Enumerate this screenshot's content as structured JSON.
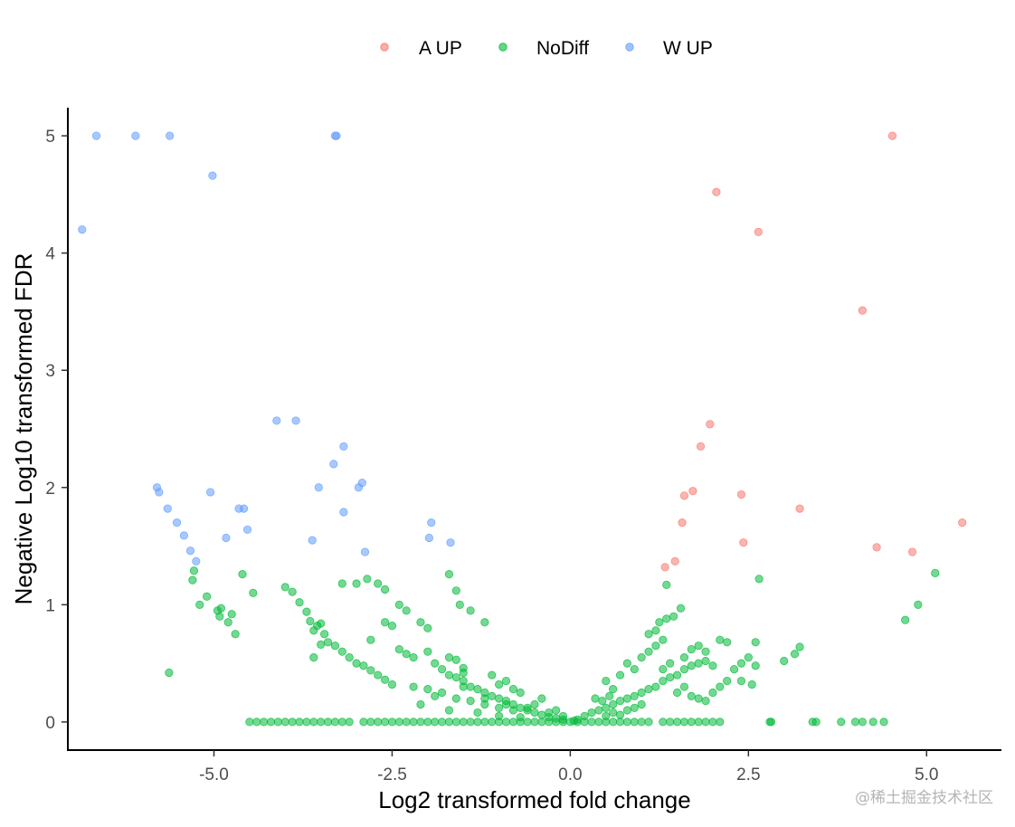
{
  "chart_data": {
    "type": "scatter",
    "title": "",
    "xlabel": "Log2 transformed fold change",
    "ylabel": "Negative Log10 transformed FDR",
    "xlim": [
      -7.05,
      6.05
    ],
    "ylim": [
      -0.24,
      5.24
    ],
    "xticks": [
      -5.0,
      -2.5,
      0.0,
      2.5,
      5.0
    ],
    "xtick_labels": [
      "-5.0",
      "-2.5",
      "0.0",
      "2.5",
      "5.0"
    ],
    "yticks": [
      0,
      1,
      2,
      3,
      4,
      5
    ],
    "ytick_labels": [
      "0",
      "1",
      "2",
      "3",
      "4",
      "5"
    ],
    "grid": false,
    "legend_position": "top-center",
    "series": [
      {
        "name": "A UP",
        "color": "#f8766d",
        "points": [
          [
            4.52,
            5.0
          ],
          [
            2.05,
            4.52
          ],
          [
            2.64,
            4.18
          ],
          [
            4.1,
            3.51
          ],
          [
            1.96,
            2.54
          ],
          [
            1.83,
            2.35
          ],
          [
            1.72,
            1.97
          ],
          [
            1.6,
            1.93
          ],
          [
            2.4,
            1.94
          ],
          [
            3.22,
            1.82
          ],
          [
            1.57,
            1.7
          ],
          [
            5.5,
            1.7
          ],
          [
            2.43,
            1.53
          ],
          [
            4.3,
            1.49
          ],
          [
            4.8,
            1.45
          ],
          [
            1.47,
            1.37
          ],
          [
            1.33,
            1.32
          ]
        ]
      },
      {
        "name": "NoDiff",
        "color": "#00ba38",
        "points": [
          [
            -5.63,
            0.42
          ],
          [
            -5.2,
            1.0
          ],
          [
            -5.1,
            1.07
          ],
          [
            -4.95,
            0.95
          ],
          [
            -4.92,
            0.9
          ],
          [
            -4.8,
            0.85
          ],
          [
            -4.75,
            0.92
          ],
          [
            -4.7,
            0.75
          ],
          [
            -4.6,
            1.26
          ],
          [
            -4.45,
            1.1
          ],
          [
            -5.3,
            1.21
          ],
          [
            -5.28,
            1.29
          ],
          [
            -4.9,
            0.97
          ],
          [
            -4.0,
            1.15
          ],
          [
            -3.9,
            1.11
          ],
          [
            -3.8,
            1.02
          ],
          [
            -3.7,
            0.94
          ],
          [
            -3.65,
            0.86
          ],
          [
            -3.6,
            0.78
          ],
          [
            -3.55,
            0.82
          ],
          [
            -3.5,
            0.84
          ],
          [
            -3.45,
            0.75
          ],
          [
            -3.4,
            0.68
          ],
          [
            -3.3,
            0.65
          ],
          [
            -3.2,
            0.6
          ],
          [
            -3.1,
            0.55
          ],
          [
            -3.0,
            0.5
          ],
          [
            -2.9,
            0.48
          ],
          [
            -2.8,
            0.44
          ],
          [
            -2.7,
            0.4
          ],
          [
            -2.6,
            0.36
          ],
          [
            -2.5,
            0.32
          ],
          [
            -3.6,
            0.55
          ],
          [
            -3.5,
            0.66
          ],
          [
            -3.2,
            1.18
          ],
          [
            -3.0,
            1.18
          ],
          [
            -2.85,
            1.22
          ],
          [
            -2.7,
            1.18
          ],
          [
            -2.6,
            1.13
          ],
          [
            -2.8,
            0.7
          ],
          [
            -2.6,
            0.85
          ],
          [
            -2.5,
            0.82
          ],
          [
            -2.4,
            0.62
          ],
          [
            -2.3,
            0.58
          ],
          [
            -2.2,
            0.55
          ],
          [
            -2.4,
            1.0
          ],
          [
            -2.3,
            0.95
          ],
          [
            -2.1,
            0.85
          ],
          [
            -2.0,
            0.8
          ],
          [
            -2.0,
            0.6
          ],
          [
            -1.9,
            0.5
          ],
          [
            -1.8,
            0.45
          ],
          [
            -1.7,
            0.4
          ],
          [
            -1.6,
            0.38
          ],
          [
            -1.5,
            0.35
          ],
          [
            -1.7,
            1.26
          ],
          [
            -1.6,
            1.12
          ],
          [
            -1.55,
            1.0
          ],
          [
            -1.4,
            0.95
          ],
          [
            -1.7,
            0.55
          ],
          [
            -1.6,
            0.53
          ],
          [
            -1.5,
            0.46
          ],
          [
            -1.5,
            0.42
          ],
          [
            -1.2,
            0.85
          ],
          [
            -1.4,
            0.3
          ],
          [
            -1.3,
            0.28
          ],
          [
            -1.2,
            0.25
          ],
          [
            -1.1,
            0.22
          ],
          [
            -1.0,
            0.2
          ],
          [
            -0.9,
            0.18
          ],
          [
            -0.8,
            0.15
          ],
          [
            -0.7,
            0.12
          ],
          [
            -0.6,
            0.1
          ],
          [
            -0.5,
            0.08
          ],
          [
            -0.4,
            0.06
          ],
          [
            -0.3,
            0.04
          ],
          [
            -0.2,
            0.03
          ],
          [
            -0.1,
            0.02
          ],
          [
            0.05,
            0.01
          ],
          [
            -2.2,
            0.3
          ],
          [
            -2.0,
            0.28
          ],
          [
            -1.9,
            0.22
          ],
          [
            -1.8,
            0.25
          ],
          [
            -1.6,
            0.2
          ],
          [
            -1.4,
            0.18
          ],
          [
            -1.2,
            0.15
          ],
          [
            -1.0,
            0.12
          ],
          [
            -0.8,
            0.1
          ],
          [
            -0.6,
            0.12
          ],
          [
            -0.5,
            0.15
          ],
          [
            -0.9,
            0.35
          ],
          [
            -1.1,
            0.4
          ],
          [
            -1.0,
            0.32
          ],
          [
            -0.8,
            0.28
          ],
          [
            -0.7,
            0.25
          ],
          [
            -2.1,
            0.15
          ],
          [
            -1.7,
            0.1
          ],
          [
            -1.3,
            0.08
          ],
          [
            -1.0,
            0.05
          ],
          [
            -0.7,
            0.04
          ],
          [
            -0.3,
            0.08
          ],
          [
            -0.2,
            0.1
          ],
          [
            -0.1,
            0.05
          ],
          [
            -1.5,
            0.3
          ],
          [
            -1.2,
            0.2
          ],
          [
            -0.9,
            0.15
          ],
          [
            -0.4,
            0.2
          ],
          [
            0.1,
            0.02
          ],
          [
            0.2,
            0.05
          ],
          [
            0.3,
            0.08
          ],
          [
            0.4,
            0.1
          ],
          [
            0.5,
            0.12
          ],
          [
            0.6,
            0.15
          ],
          [
            0.7,
            0.18
          ],
          [
            0.8,
            0.2
          ],
          [
            0.9,
            0.22
          ],
          [
            1.0,
            0.25
          ],
          [
            1.1,
            0.28
          ],
          [
            1.2,
            0.3
          ],
          [
            1.3,
            0.35
          ],
          [
            1.4,
            0.38
          ],
          [
            1.5,
            0.4
          ],
          [
            1.6,
            0.45
          ],
          [
            1.7,
            0.48
          ],
          [
            1.8,
            0.5
          ],
          [
            1.9,
            0.52
          ],
          [
            2.0,
            0.48
          ],
          [
            0.35,
            0.2
          ],
          [
            0.5,
            0.35
          ],
          [
            0.6,
            0.28
          ],
          [
            0.7,
            0.4
          ],
          [
            0.8,
            0.5
          ],
          [
            0.9,
            0.45
          ],
          [
            1.0,
            0.55
          ],
          [
            1.1,
            0.6
          ],
          [
            1.2,
            0.65
          ],
          [
            1.3,
            0.7
          ],
          [
            1.25,
            0.85
          ],
          [
            1.35,
            0.88
          ],
          [
            1.45,
            0.9
          ],
          [
            1.55,
            0.97
          ],
          [
            1.35,
            1.17
          ],
          [
            1.2,
            0.78
          ],
          [
            1.1,
            0.75
          ],
          [
            1.3,
            0.45
          ],
          [
            1.4,
            0.5
          ],
          [
            1.6,
            0.55
          ],
          [
            1.7,
            0.62
          ],
          [
            1.8,
            0.65
          ],
          [
            1.9,
            0.6
          ],
          [
            2.1,
            0.7
          ],
          [
            2.2,
            0.68
          ],
          [
            2.3,
            0.45
          ],
          [
            2.4,
            0.5
          ],
          [
            2.5,
            0.55
          ],
          [
            2.6,
            0.48
          ],
          [
            2.65,
            1.22
          ],
          [
            2.55,
            0.32
          ],
          [
            2.6,
            0.68
          ],
          [
            2.4,
            0.35
          ],
          [
            1.5,
            0.25
          ],
          [
            1.6,
            0.3
          ],
          [
            1.7,
            0.22
          ],
          [
            1.8,
            0.2
          ],
          [
            1.9,
            0.18
          ],
          [
            2.0,
            0.25
          ],
          [
            2.1,
            0.3
          ],
          [
            2.2,
            0.35
          ],
          [
            0.5,
            0.05
          ],
          [
            0.6,
            0.08
          ],
          [
            0.7,
            0.06
          ],
          [
            0.8,
            0.1
          ],
          [
            0.9,
            0.12
          ],
          [
            1.0,
            0.15
          ],
          [
            0.45,
            0.18
          ],
          [
            0.55,
            0.22
          ],
          [
            3.0,
            0.52
          ],
          [
            3.15,
            0.58
          ],
          [
            3.22,
            0.64
          ],
          [
            4.7,
            0.87
          ],
          [
            4.88,
            1.0
          ],
          [
            5.12,
            1.27
          ],
          [
            -4.5,
            0.0
          ],
          [
            -4.4,
            0.0
          ],
          [
            -4.3,
            0.0
          ],
          [
            -4.2,
            0.0
          ],
          [
            -4.1,
            0.0
          ],
          [
            -4.0,
            0.0
          ],
          [
            -3.9,
            0.0
          ],
          [
            -3.8,
            0.0
          ],
          [
            -3.7,
            0.0
          ],
          [
            -3.6,
            0.0
          ],
          [
            -3.5,
            0.0
          ],
          [
            -3.4,
            0.0
          ],
          [
            -3.3,
            0.0
          ],
          [
            -3.2,
            0.0
          ],
          [
            -3.1,
            0.0
          ],
          [
            -2.9,
            0.0
          ],
          [
            -2.8,
            0.0
          ],
          [
            -2.7,
            0.0
          ],
          [
            -2.6,
            0.0
          ],
          [
            -2.5,
            0.0
          ],
          [
            -2.4,
            0.0
          ],
          [
            -2.3,
            0.0
          ],
          [
            -2.2,
            0.0
          ],
          [
            -2.1,
            0.0
          ],
          [
            -2.0,
            0.0
          ],
          [
            -1.9,
            0.0
          ],
          [
            -1.8,
            0.0
          ],
          [
            -1.7,
            0.0
          ],
          [
            -1.6,
            0.0
          ],
          [
            -1.5,
            0.0
          ],
          [
            -1.4,
            0.0
          ],
          [
            -1.3,
            0.0
          ],
          [
            -1.2,
            0.0
          ],
          [
            -1.1,
            0.0
          ],
          [
            -1.0,
            0.0
          ],
          [
            -0.9,
            0.0
          ],
          [
            -0.8,
            0.0
          ],
          [
            -0.7,
            0.0
          ],
          [
            -0.6,
            0.0
          ],
          [
            -0.5,
            0.0
          ],
          [
            -0.4,
            0.0
          ],
          [
            -0.3,
            0.0
          ],
          [
            -0.2,
            0.0
          ],
          [
            -0.1,
            0.0
          ],
          [
            0.0,
            0.0
          ],
          [
            0.1,
            0.0
          ],
          [
            0.2,
            0.0
          ],
          [
            0.3,
            0.0
          ],
          [
            0.4,
            0.0
          ],
          [
            0.5,
            0.0
          ],
          [
            0.6,
            0.0
          ],
          [
            0.7,
            0.0
          ],
          [
            0.8,
            0.0
          ],
          [
            0.9,
            0.0
          ],
          [
            1.0,
            0.0
          ],
          [
            1.1,
            0.0
          ],
          [
            1.3,
            0.0
          ],
          [
            1.4,
            0.0
          ],
          [
            1.5,
            0.0
          ],
          [
            1.6,
            0.0
          ],
          [
            1.7,
            0.0
          ],
          [
            1.8,
            0.0
          ],
          [
            1.9,
            0.0
          ],
          [
            2.0,
            0.0
          ],
          [
            2.1,
            0.0
          ],
          [
            2.8,
            0.0
          ],
          [
            2.82,
            0.0
          ],
          [
            3.4,
            0.0
          ],
          [
            3.45,
            0.0
          ],
          [
            3.8,
            0.0
          ],
          [
            4.0,
            0.0
          ],
          [
            4.1,
            0.0
          ],
          [
            4.25,
            0.0
          ],
          [
            4.4,
            0.0
          ]
        ]
      },
      {
        "name": "W UP",
        "color": "#619cff",
        "points": [
          [
            -6.65,
            5.0
          ],
          [
            -6.1,
            5.0
          ],
          [
            -5.62,
            5.0
          ],
          [
            -3.3,
            5.0
          ],
          [
            -3.28,
            5.0
          ],
          [
            -5.02,
            4.66
          ],
          [
            -6.85,
            4.2
          ],
          [
            -4.12,
            2.57
          ],
          [
            -3.85,
            2.57
          ],
          [
            -3.18,
            2.35
          ],
          [
            -3.32,
            2.2
          ],
          [
            -3.53,
            2.0
          ],
          [
            -2.92,
            2.04
          ],
          [
            -2.97,
            2.0
          ],
          [
            -5.8,
            2.0
          ],
          [
            -5.77,
            1.96
          ],
          [
            -5.05,
            1.96
          ],
          [
            -4.65,
            1.82
          ],
          [
            -4.58,
            1.82
          ],
          [
            -5.65,
            1.82
          ],
          [
            -3.18,
            1.79
          ],
          [
            -1.95,
            1.7
          ],
          [
            -5.52,
            1.7
          ],
          [
            -4.53,
            1.64
          ],
          [
            -5.42,
            1.59
          ],
          [
            -4.83,
            1.57
          ],
          [
            -1.98,
            1.57
          ],
          [
            -3.62,
            1.55
          ],
          [
            -1.68,
            1.53
          ],
          [
            -5.33,
            1.46
          ],
          [
            -2.88,
            1.45
          ],
          [
            -5.25,
            1.37
          ]
        ]
      }
    ]
  },
  "watermark": "@稀土掘金技术社区"
}
